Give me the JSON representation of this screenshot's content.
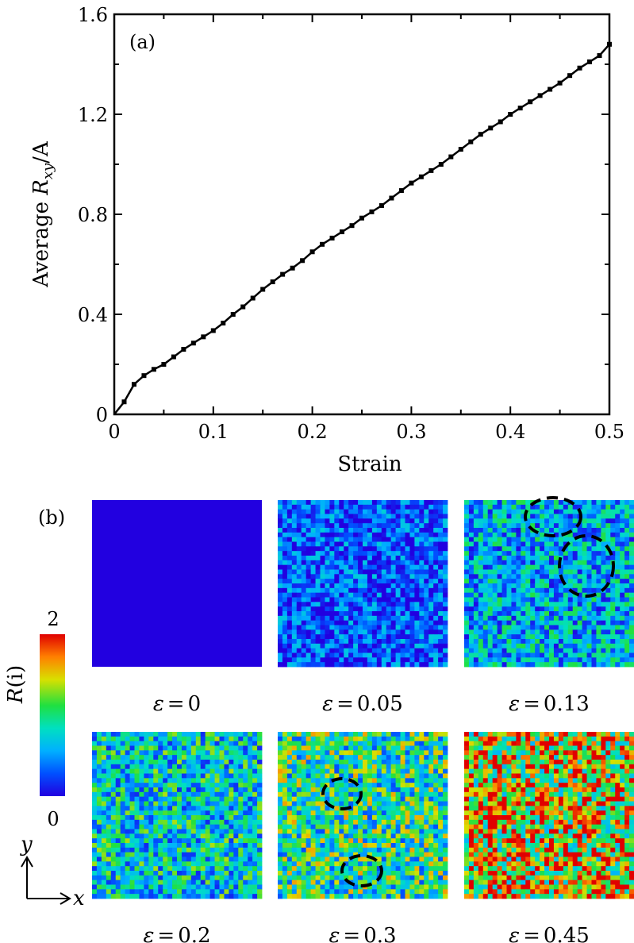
{
  "panel_a": {
    "label": "(a)",
    "xlabel": "Strain",
    "ylabel_prefix": "Average ",
    "ylabel_symbol": "R",
    "ylabel_sub": "xy",
    "ylabel_suffix": "/A"
  },
  "chart_data": {
    "type": "line",
    "title": "",
    "xlabel": "Strain",
    "ylabel": "Average R_xy/A",
    "xlim": [
      0,
      0.5
    ],
    "ylim": [
      0,
      1.6
    ],
    "x_ticks": [
      0,
      0.1,
      0.2,
      0.3,
      0.4,
      0.5
    ],
    "x_tick_labels": [
      "0",
      "0.1",
      "0.2",
      "0.3",
      "0.4",
      "0.5"
    ],
    "y_ticks": [
      0,
      0.4,
      0.8,
      1.2,
      1.6
    ],
    "y_tick_labels": [
      "0",
      "0.4",
      "0.8",
      "1.2",
      "1.6"
    ],
    "grid": false,
    "marker": "square",
    "series": [
      {
        "x": [
          0,
          0.01,
          0.02,
          0.03,
          0.04,
          0.05,
          0.06,
          0.07,
          0.08,
          0.09,
          0.1,
          0.11,
          0.12,
          0.13,
          0.14,
          0.15,
          0.16,
          0.17,
          0.18,
          0.19,
          0.2,
          0.21,
          0.22,
          0.23,
          0.24,
          0.25,
          0.26,
          0.27,
          0.28,
          0.29,
          0.3,
          0.31,
          0.32,
          0.33,
          0.34,
          0.35,
          0.36,
          0.37,
          0.38,
          0.39,
          0.4,
          0.41,
          0.42,
          0.43,
          0.44,
          0.45,
          0.46,
          0.47,
          0.48,
          0.49,
          0.5
        ],
        "y": [
          0.0,
          0.05,
          0.12,
          0.155,
          0.18,
          0.2,
          0.23,
          0.26,
          0.285,
          0.31,
          0.335,
          0.365,
          0.4,
          0.43,
          0.465,
          0.5,
          0.53,
          0.56,
          0.585,
          0.615,
          0.65,
          0.68,
          0.705,
          0.73,
          0.755,
          0.785,
          0.81,
          0.835,
          0.865,
          0.895,
          0.925,
          0.95,
          0.975,
          1.0,
          1.03,
          1.06,
          1.09,
          1.12,
          1.145,
          1.17,
          1.2,
          1.225,
          1.25,
          1.275,
          1.3,
          1.325,
          1.355,
          1.385,
          1.41,
          1.435,
          1.48
        ]
      }
    ]
  },
  "panel_b": {
    "label": "(b)",
    "colorbar": {
      "title_symbol": "R",
      "title_arg": "(i)",
      "max_label": "2",
      "min_label": "0",
      "colors": [
        "#2200e0",
        "#0050ff",
        "#00b0ff",
        "#00e0c0",
        "#20e040",
        "#d8e000",
        "#ff8000",
        "#e00000"
      ]
    },
    "axes_indicator": {
      "y": "y",
      "x": "x"
    },
    "snapshots": [
      {
        "eps_symbol": "ε",
        "eq": "=",
        "value": "0",
        "mean": 0.0,
        "circles": 0
      },
      {
        "eps_symbol": "ε",
        "eq": "=",
        "value": "0.05",
        "mean": 0.3,
        "circles": 0
      },
      {
        "eps_symbol": "ε",
        "eq": "=",
        "value": "0.13",
        "mean": 0.6,
        "circles": 2
      },
      {
        "eps_symbol": "ε",
        "eq": "=",
        "value": "0.2",
        "mean": 0.75,
        "circles": 0
      },
      {
        "eps_symbol": "ε",
        "eq": "=",
        "value": "0.3",
        "mean": 0.95,
        "circles": 2
      },
      {
        "eps_symbol": "ε",
        "eq": "=",
        "value": "0.45",
        "mean": 1.45,
        "circles": 0
      }
    ]
  }
}
